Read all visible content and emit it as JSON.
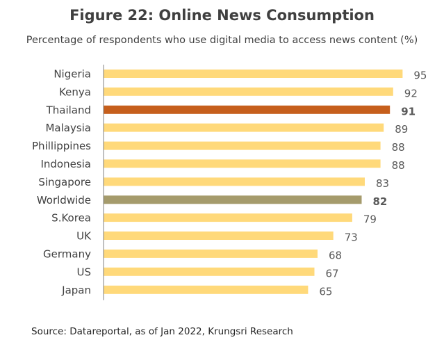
{
  "chart_data": {
    "type": "bar",
    "orientation": "horizontal",
    "title": "Figure 22: Online News Consumption",
    "subtitle": "Percentage of respondents who use digital media to access news content (%)",
    "source": "Source: Datareportal, as of Jan 2022, Krungsri Research",
    "categories": [
      "Nigeria",
      "Kenya",
      "Thailand",
      "Malaysia",
      "Phillippines",
      "Indonesia",
      "Singapore",
      "Worldwide",
      "S.Korea",
      "UK",
      "Germany",
      "US",
      "Japan"
    ],
    "values": [
      95,
      92,
      91,
      89,
      88,
      88,
      83,
      82,
      79,
      73,
      68,
      67,
      65
    ],
    "xlim": [
      0,
      100
    ],
    "grid": false,
    "legend": "none",
    "colors": {
      "default": "#FFD97A",
      "highlight_thailand": "#C65F1C",
      "highlight_worldwide": "#A59B6C",
      "axis": "#808080"
    },
    "highlights": {
      "Thailand": "#C65F1C",
      "Worldwide": "#A59B6C"
    }
  }
}
